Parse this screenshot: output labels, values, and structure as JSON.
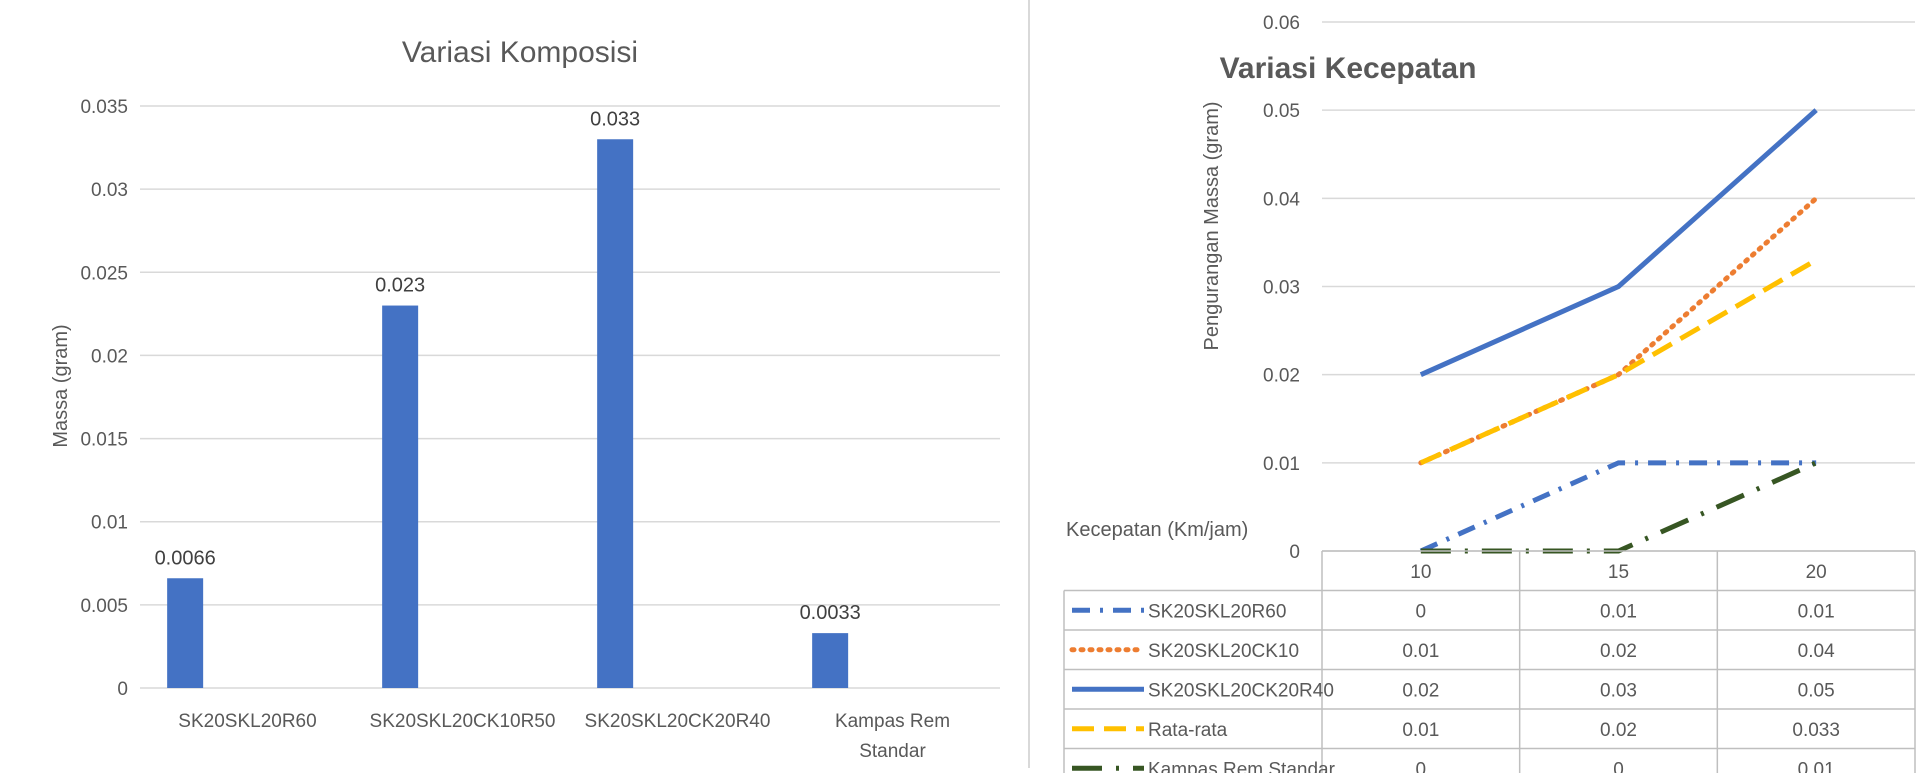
{
  "chart_data": [
    {
      "type": "bar",
      "title": "Variasi Komposisi",
      "xlabel": "",
      "ylabel": "Massa (gram)",
      "categories": [
        "SK20SKL20R60",
        "SK20SKL20CK10R50",
        "SK20SKL20CK20R40",
        "Kampas Rem Standar"
      ],
      "values": [
        0.0066,
        0.023,
        0.033,
        0.0033
      ],
      "data_labels": [
        "0.0066",
        "0.023",
        "0.033",
        "0.0033"
      ],
      "ylim": [
        0,
        0.035
      ],
      "yticks": [
        "0",
        "0.005",
        "0.01",
        "0.015",
        "0.02",
        "0.025",
        "0.03",
        "0.035"
      ],
      "grid": true,
      "legend": "none",
      "colors": {
        "bar": "#4472C4"
      }
    },
    {
      "type": "line",
      "title": "Variasi Kecepatan",
      "xlabel": "Kecepatan (Km/jam)",
      "ylabel": "Pengurangan Massa (gram)",
      "x": [
        "10",
        "15",
        "20"
      ],
      "ylim": [
        0,
        0.06
      ],
      "yticks": [
        "0",
        "0.01",
        "0.02",
        "0.03",
        "0.04",
        "0.05",
        "0.06"
      ],
      "grid": true,
      "legend": "data-table-below",
      "series": [
        {
          "name": "SK20SKL20R60",
          "values": [
            0,
            0.01,
            0.01
          ],
          "labels": [
            "0",
            "0.01",
            "0.01"
          ],
          "color": "#4472C4",
          "dash": "dash-dot"
        },
        {
          "name": "SK20SKL20CK10",
          "values": [
            0.01,
            0.02,
            0.04
          ],
          "labels": [
            "0.01",
            "0.02",
            "0.04"
          ],
          "color": "#ED7D31",
          "dash": "dotted"
        },
        {
          "name": "SK20SKL20CK20R40",
          "values": [
            0.02,
            0.03,
            0.05
          ],
          "labels": [
            "0.02",
            "0.03",
            "0.05"
          ],
          "color": "#4472C4",
          "dash": "solid"
        },
        {
          "name": "Rata-rata",
          "values": [
            0.01,
            0.02,
            0.033
          ],
          "labels": [
            "0.01",
            "0.02",
            "0.033"
          ],
          "color": "#FFC000",
          "dash": "dashed"
        },
        {
          "name": "Kampas Rem Standar",
          "values": [
            0,
            0,
            0.01
          ],
          "labels": [
            "0",
            "0",
            "0.01"
          ],
          "color": "#375623",
          "dash": "long-dash-dot"
        }
      ]
    }
  ]
}
